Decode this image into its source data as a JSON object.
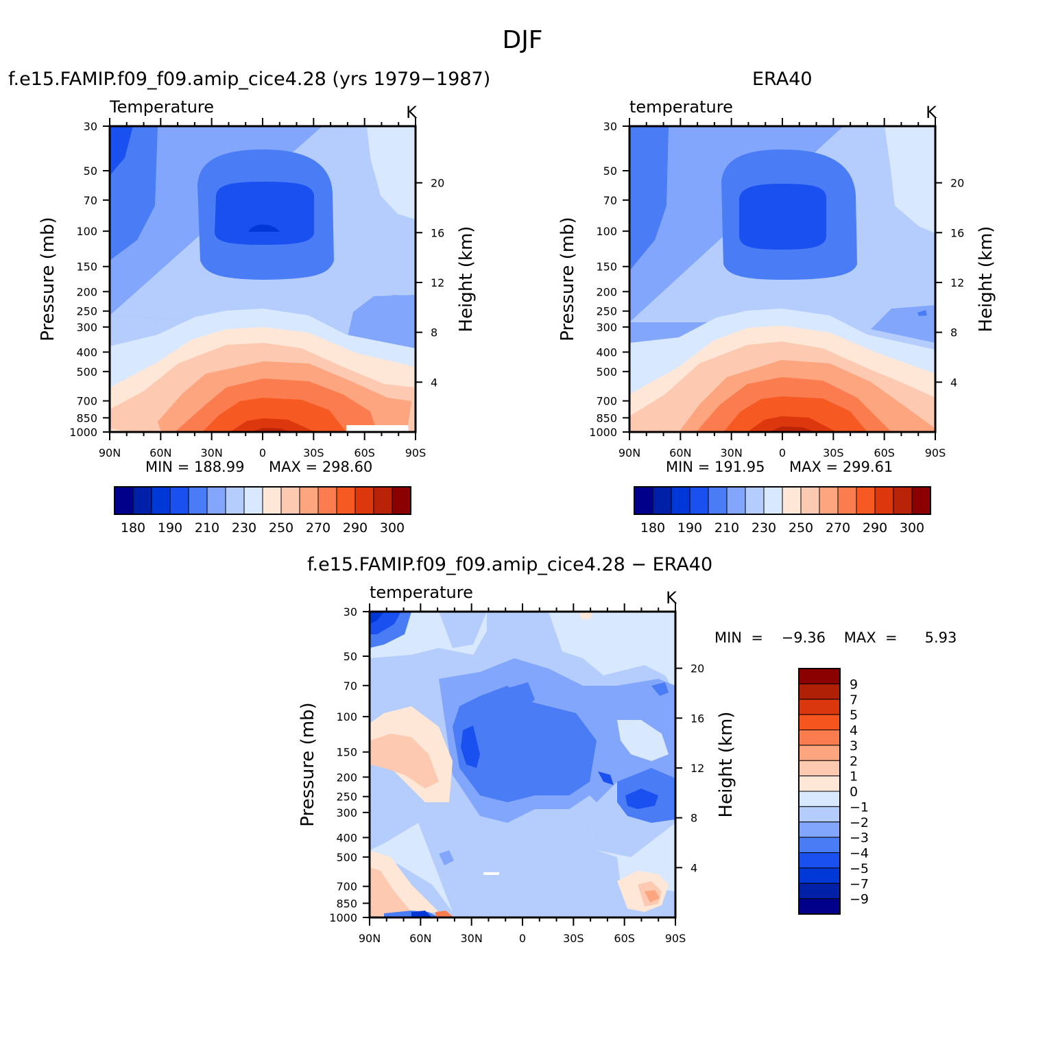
{
  "page_title": "DJF",
  "panels": {
    "model": {
      "case_title": "f.e15.FAMIP.f09_f09.amip_cice4.28 (yrs 1979−1987)",
      "var_label": "Temperature",
      "units": "K",
      "min_label": "MIN  =  188.99",
      "max_label": "MAX  =  298.60"
    },
    "obs": {
      "case_title": "ERA40",
      "var_label": "temperature",
      "units": "K",
      "min_label": "MIN  =  191.95",
      "max_label": "MAX  =  299.61"
    },
    "diff": {
      "case_title": "f.e15.FAMIP.f09_f09.amip_cice4.28  −  ERA40",
      "var_label": "temperature",
      "units": "K",
      "minmax_label": "MIN  =    −9.36    MAX  =      5.93"
    }
  },
  "chart_data": [
    {
      "type": "heatmap",
      "title": "Temperature",
      "units": "K",
      "xlabel": "",
      "ylabel": "Pressure (mb)",
      "y2label": "Height (km)",
      "x_ticks": [
        "90N",
        "60N",
        "30N",
        "0",
        "30S",
        "60S",
        "90S"
      ],
      "y_ticks": [
        "30",
        "50",
        "70",
        "100",
        "150",
        "200",
        "250",
        "300",
        "400",
        "500",
        "700",
        "850",
        "1000"
      ],
      "y_tick_values": [
        30,
        50,
        70,
        100,
        150,
        200,
        250,
        300,
        400,
        500,
        700,
        850,
        1000
      ],
      "y2_ticks": [
        "20",
        "16",
        "12",
        "8",
        "4"
      ],
      "y2_tick_values": [
        20,
        16,
        12,
        8,
        4
      ],
      "ylim": [
        1000,
        30
      ],
      "xlim": [
        90,
        -90
      ],
      "min": 188.99,
      "max": 298.6,
      "colorbar_labels": [
        "180",
        "190",
        "210",
        "230",
        "250",
        "270",
        "290",
        "300"
      ]
    },
    {
      "type": "heatmap",
      "title": "temperature",
      "units": "K",
      "xlabel": "",
      "ylabel": "Pressure (mb)",
      "y2label": "Height (km)",
      "x_ticks": [
        "90N",
        "60N",
        "30N",
        "0",
        "30S",
        "60S",
        "90S"
      ],
      "y_ticks": [
        "30",
        "50",
        "70",
        "100",
        "150",
        "200",
        "250",
        "300",
        "400",
        "500",
        "700",
        "850",
        "1000"
      ],
      "y_tick_values": [
        30,
        50,
        70,
        100,
        150,
        200,
        250,
        300,
        400,
        500,
        700,
        850,
        1000
      ],
      "y2_ticks": [
        "20",
        "16",
        "12",
        "8",
        "4"
      ],
      "y2_tick_values": [
        20,
        16,
        12,
        8,
        4
      ],
      "ylim": [
        1000,
        30
      ],
      "xlim": [
        90,
        -90
      ],
      "min": 191.95,
      "max": 299.61,
      "colorbar_labels": [
        "180",
        "190",
        "210",
        "230",
        "250",
        "270",
        "290",
        "300"
      ]
    },
    {
      "type": "heatmap",
      "title": "temperature",
      "units": "K",
      "xlabel": "",
      "ylabel": "Pressure (mb)",
      "y2label": "Height (km)",
      "x_ticks": [
        "90N",
        "60N",
        "30N",
        "0",
        "30S",
        "60S",
        "90S"
      ],
      "y_ticks": [
        "30",
        "50",
        "70",
        "100",
        "150",
        "200",
        "250",
        "300",
        "400",
        "500",
        "700",
        "850",
        "1000"
      ],
      "y_tick_values": [
        30,
        50,
        70,
        100,
        150,
        200,
        250,
        300,
        400,
        500,
        700,
        850,
        1000
      ],
      "y2_ticks": [
        "20",
        "16",
        "12",
        "8",
        "4"
      ],
      "y2_tick_values": [
        20,
        16,
        12,
        8,
        4
      ],
      "ylim": [
        1000,
        30
      ],
      "xlim": [
        90,
        -90
      ],
      "min": -9.36,
      "max": 5.93,
      "colorbar_labels": [
        "9",
        "7",
        "5",
        "4",
        "3",
        "2",
        "1",
        "0",
        "−1",
        "−2",
        "−3",
        "−4",
        "−5",
        "−7",
        "−9"
      ]
    }
  ],
  "colors": {
    "abs_levels": [
      "#00008b",
      "#0020a8",
      "#0038d8",
      "#1a50f0",
      "#4a7cf5",
      "#82a6fb",
      "#b4cdfd",
      "#d8e8fe",
      "#ffe7d7",
      "#fdc9b0",
      "#fca57f",
      "#fb7d4f",
      "#f65a22",
      "#dd380d",
      "#b92408",
      "#8b0000"
    ],
    "diff_levels": [
      "#8b0000",
      "#b02006",
      "#db370e",
      "#f6561e",
      "#fb7d4f",
      "#fca57f",
      "#fdc9b0",
      "#ffe7d7",
      "#d8e8fe",
      "#b4cdfd",
      "#82a6fb",
      "#4a7cf5",
      "#1a50f0",
      "#0038d8",
      "#0020a8",
      "#00008b"
    ]
  }
}
